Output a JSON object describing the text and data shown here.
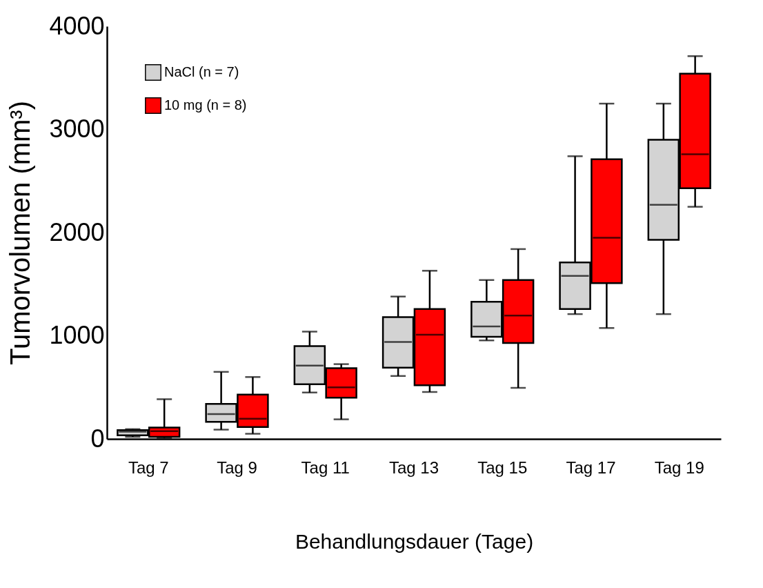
{
  "chart_data": {
    "type": "box",
    "xlabel": "Behandlungsdauer (Tage)",
    "ylabel": "Tumorvolumen (mm³)",
    "categories": [
      "Tag 7",
      "Tag 9",
      "Tag 11",
      "Tag 13",
      "Tag 15",
      "Tag 17",
      "Tag 19"
    ],
    "ylim": [
      0,
      4000
    ],
    "yticks": [
      0,
      1000,
      2000,
      3000,
      4000
    ],
    "grid": false,
    "legend": "top left",
    "series": [
      {
        "name": "NaCl (n = 7)",
        "color": "#d3d3d3",
        "boxes": [
          {
            "low": 20,
            "q1": 35,
            "median": 70,
            "q3": 85,
            "high": 95
          },
          {
            "low": 90,
            "q1": 165,
            "median": 240,
            "q3": 340,
            "high": 650
          },
          {
            "low": 450,
            "q1": 530,
            "median": 710,
            "q3": 900,
            "high": 1040
          },
          {
            "low": 610,
            "q1": 690,
            "median": 940,
            "q3": 1180,
            "high": 1380
          },
          {
            "low": 955,
            "q1": 990,
            "median": 1090,
            "q3": 1330,
            "high": 1540
          },
          {
            "low": 1210,
            "q1": 1260,
            "median": 1580,
            "q3": 1710,
            "high": 2740
          },
          {
            "low": 1210,
            "q1": 1930,
            "median": 2270,
            "q3": 2900,
            "high": 3250
          }
        ]
      },
      {
        "name": "10 mg (n = 8)",
        "color": "#ff0000",
        "boxes": [
          {
            "low": 10,
            "q1": 20,
            "median": 75,
            "q3": 110,
            "high": 385
          },
          {
            "low": 50,
            "q1": 115,
            "median": 195,
            "q3": 430,
            "high": 600
          },
          {
            "low": 190,
            "q1": 400,
            "median": 500,
            "q3": 685,
            "high": 725
          },
          {
            "low": 455,
            "q1": 520,
            "median": 1010,
            "q3": 1260,
            "high": 1630
          },
          {
            "low": 495,
            "q1": 930,
            "median": 1195,
            "q3": 1540,
            "high": 1840
          },
          {
            "low": 1075,
            "q1": 1510,
            "median": 1950,
            "q3": 2710,
            "high": 3250
          },
          {
            "low": 2250,
            "q1": 2430,
            "median": 2760,
            "q3": 3540,
            "high": 3710
          }
        ]
      }
    ]
  }
}
